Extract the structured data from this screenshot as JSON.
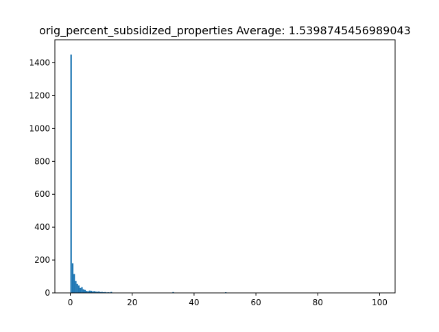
{
  "chart_data": {
    "type": "bar",
    "title": "orig_percent_subsidized_properties  Average: 1.5398745456989043",
    "xlabel": "",
    "ylabel": "",
    "xlim": [
      -5,
      105
    ],
    "ylim": [
      0,
      1540
    ],
    "xticks": [
      0,
      20,
      40,
      60,
      80,
      100
    ],
    "yticks": [
      0,
      200,
      400,
      600,
      800,
      1000,
      1200,
      1400
    ],
    "bin_width": 0.5,
    "bar_color": "#1f77b4",
    "bins": [
      {
        "x": 0.0,
        "count": 1450
      },
      {
        "x": 0.5,
        "count": 180
      },
      {
        "x": 1.0,
        "count": 115
      },
      {
        "x": 1.5,
        "count": 72
      },
      {
        "x": 2.0,
        "count": 55
      },
      {
        "x": 2.5,
        "count": 45
      },
      {
        "x": 3.0,
        "count": 30
      },
      {
        "x": 3.5,
        "count": 35
      },
      {
        "x": 4.0,
        "count": 22
      },
      {
        "x": 4.5,
        "count": 18
      },
      {
        "x": 5.0,
        "count": 12
      },
      {
        "x": 5.5,
        "count": 10
      },
      {
        "x": 6.0,
        "count": 14
      },
      {
        "x": 6.5,
        "count": 13
      },
      {
        "x": 7.0,
        "count": 9
      },
      {
        "x": 7.5,
        "count": 11
      },
      {
        "x": 8.0,
        "count": 8
      },
      {
        "x": 8.5,
        "count": 7
      },
      {
        "x": 9.0,
        "count": 9
      },
      {
        "x": 9.5,
        "count": 5
      },
      {
        "x": 10.0,
        "count": 6
      },
      {
        "x": 10.5,
        "count": 4
      },
      {
        "x": 11.0,
        "count": 5
      },
      {
        "x": 11.5,
        "count": 3
      },
      {
        "x": 12.0,
        "count": 4
      },
      {
        "x": 12.5,
        "count": 3
      },
      {
        "x": 13.0,
        "count": 6
      },
      {
        "x": 14.0,
        "count": 2
      },
      {
        "x": 15.0,
        "count": 2
      },
      {
        "x": 16.0,
        "count": 1
      },
      {
        "x": 17.0,
        "count": 2
      },
      {
        "x": 18.5,
        "count": 1
      },
      {
        "x": 20.0,
        "count": 2
      },
      {
        "x": 22.0,
        "count": 1
      },
      {
        "x": 25.0,
        "count": 1
      },
      {
        "x": 33.0,
        "count": 5
      },
      {
        "x": 50.0,
        "count": 4
      },
      {
        "x": 66.5,
        "count": 1
      },
      {
        "x": 100.0,
        "count": 2
      }
    ]
  }
}
